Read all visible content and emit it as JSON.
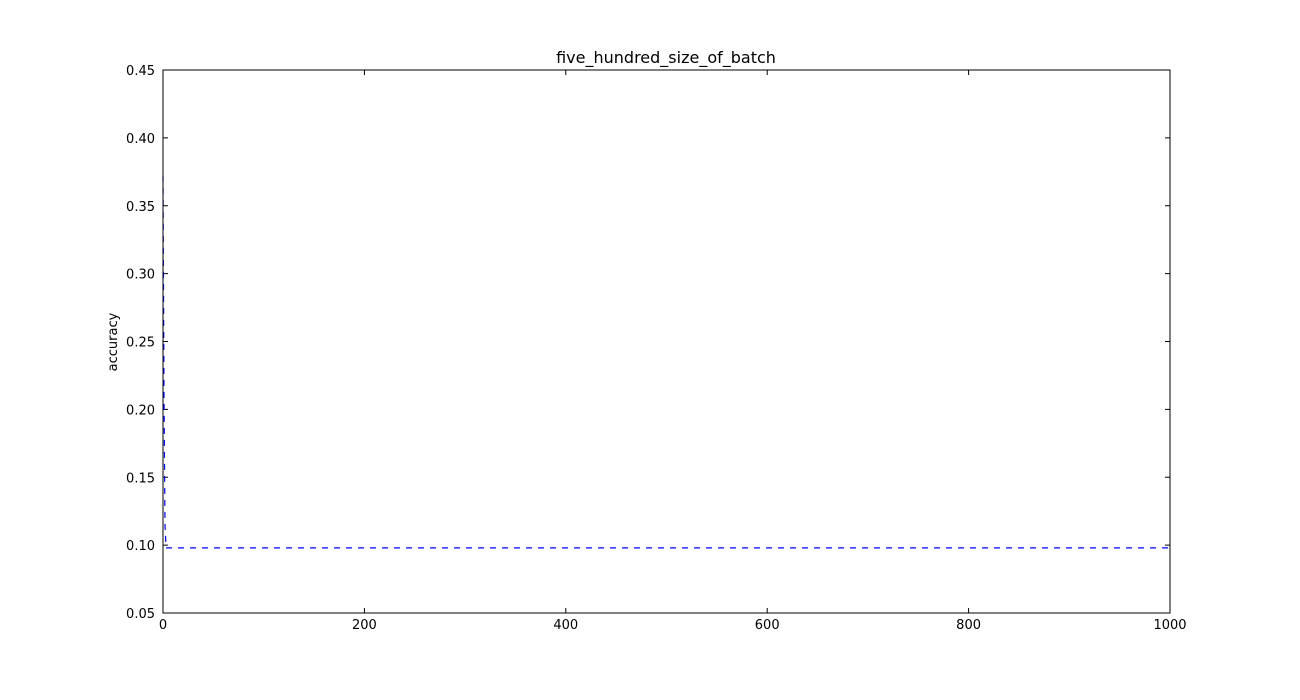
{
  "chart_data": {
    "type": "line",
    "title": "five_hundred_size_of_batch",
    "xlabel": "",
    "ylabel": "accuracy",
    "xlim": [
      0,
      1000
    ],
    "ylim": [
      0.05,
      0.45
    ],
    "xticks": [
      0,
      200,
      400,
      600,
      800,
      1000
    ],
    "xtick_labels": [
      "0",
      "200",
      "400",
      "600",
      "800",
      "1000"
    ],
    "yticks": [
      0.05,
      0.1,
      0.15,
      0.2,
      0.25,
      0.3,
      0.35,
      0.4,
      0.45
    ],
    "ytick_labels": [
      "0.05",
      "0.10",
      "0.15",
      "0.20",
      "0.25",
      "0.30",
      "0.35",
      "0.40",
      "0.45"
    ],
    "grid": false,
    "legend": "none",
    "series": [
      {
        "line_style": "dashed",
        "color": "#0000ff",
        "x": [
          0,
          1,
          2,
          3,
          1000
        ],
        "y": [
          0.372,
          0.21,
          0.115,
          0.098,
          0.098
        ]
      }
    ]
  }
}
